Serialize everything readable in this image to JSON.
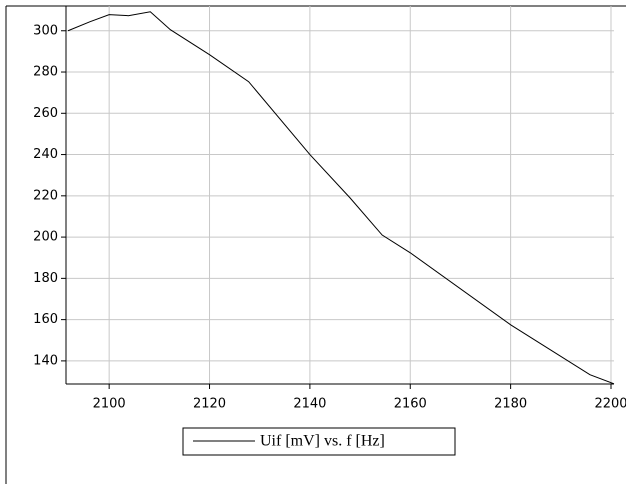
{
  "chart_data": {
    "type": "line",
    "x": [
      2091.8,
      2096.2,
      2100,
      2103.8,
      2108.2,
      2112.2,
      2120,
      2127.8,
      2140,
      2148,
      2154.4,
      2160,
      2180,
      2195.8,
      2200.6
    ],
    "series": [
      {
        "name": "Uif [mV] vs. f [Hz]",
        "color": "#000000",
        "values": [
          300,
          304.4,
          307.8,
          307.3,
          309.2,
          300.5,
          288.4,
          275.3,
          240,
          219,
          201,
          192.4,
          157.5,
          133.3,
          128.9
        ]
      }
    ],
    "xlim": [
      2091.4,
      2200.6
    ],
    "ylim": [
      128.8,
      312
    ],
    "xticks": [
      2100,
      2120,
      2140,
      2160,
      2180,
      2200
    ],
    "yticks": [
      140,
      160,
      180,
      200,
      220,
      240,
      260,
      280,
      300
    ],
    "grid": true
  }
}
